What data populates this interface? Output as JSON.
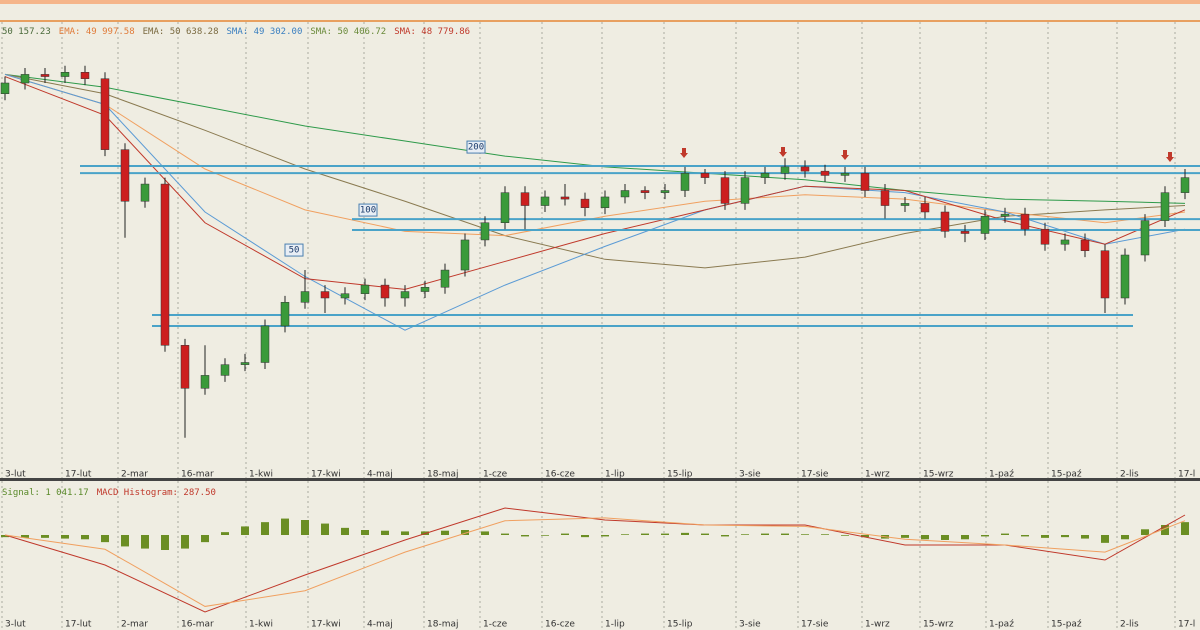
{
  "chart_data": [
    {
      "type": "candlestick",
      "header": [
        {
          "text": "50 157.23",
          "color": "#4a6a3a"
        },
        {
          "text": "EMA: 49 997.58",
          "color": "#e07b39"
        },
        {
          "text": "EMA: 50 638.28",
          "color": "#7a6a40"
        },
        {
          "text": "SMA: 49 302.00",
          "color": "#3a7fc0"
        },
        {
          "text": "SMA: 50 406.72",
          "color": "#6a8a3a"
        },
        {
          "text": "SMA: 48 779.86",
          "color": "#c0392b"
        }
      ],
      "xlim": [
        -0.25,
        59.75
      ],
      "ylim": [
        33000,
        53000
      ],
      "xticks": [
        {
          "value": -0.15,
          "label": "3-lut"
        },
        {
          "value": 2.85,
          "label": "17-lut"
        },
        {
          "value": 5.65,
          "label": "2-mar"
        },
        {
          "value": 8.65,
          "label": "16-mar"
        },
        {
          "value": 12.05,
          "label": "1-kwi"
        },
        {
          "value": 15.15,
          "label": "17-kwi"
        },
        {
          "value": 17.95,
          "label": "4-maj"
        },
        {
          "value": 20.95,
          "label": "18-maj"
        },
        {
          "value": 23.75,
          "label": "1-cze"
        },
        {
          "value": 26.85,
          "label": "16-cze"
        },
        {
          "value": 29.85,
          "label": "1-lip"
        },
        {
          "value": 32.95,
          "label": "15-lip"
        },
        {
          "value": 36.55,
          "label": "3-sie"
        },
        {
          "value": 39.65,
          "label": "17-sie"
        },
        {
          "value": 42.85,
          "label": "1-wrz"
        },
        {
          "value": 45.75,
          "label": "15-wrz"
        },
        {
          "value": 49.05,
          "label": "1-paź"
        },
        {
          "value": 52.15,
          "label": "15-paź"
        },
        {
          "value": 55.6,
          "label": "2-lis"
        },
        {
          "value": 58.5,
          "label": "17-l"
        }
      ],
      "colors": {
        "up": "#3a9a3a",
        "down": "#cc1f1f"
      },
      "open": [
        50500,
        51000,
        51400,
        51300,
        51500,
        51200,
        47900,
        45500,
        46300,
        38800,
        36800,
        37400,
        37900,
        38000,
        39700,
        40800,
        41300,
        41000,
        41200,
        41600,
        41000,
        41300,
        41500,
        42300,
        43700,
        44500,
        45900,
        45300,
        45700,
        45600,
        45200,
        45700,
        46000,
        45900,
        46000,
        46800,
        46600,
        45400,
        46600,
        46800,
        47100,
        46900,
        46700,
        46800,
        46000,
        45300,
        45400,
        45000,
        44100,
        44000,
        44800,
        44900,
        44200,
        43500,
        43700,
        43200,
        41000,
        43000,
        44600,
        45900
      ],
      "high": [
        51300,
        51700,
        51700,
        51800,
        51800,
        51500,
        48200,
        46600,
        46600,
        39100,
        38800,
        38200,
        38400,
        40000,
        41100,
        42300,
        41600,
        41500,
        41900,
        41900,
        41600,
        41800,
        42600,
        44000,
        44800,
        46200,
        46200,
        46000,
        46300,
        45900,
        46000,
        46300,
        46200,
        46300,
        47100,
        47000,
        46900,
        46900,
        47100,
        47500,
        47400,
        47200,
        47100,
        47100,
        46300,
        45700,
        45700,
        45300,
        44400,
        45100,
        45200,
        45200,
        44500,
        44000,
        44000,
        43500,
        43300,
        44900,
        46200,
        47000
      ],
      "low": [
        50200,
        50700,
        51000,
        51000,
        50900,
        47600,
        43800,
        45200,
        38500,
        34500,
        36500,
        37100,
        37600,
        37700,
        39400,
        40500,
        40300,
        40700,
        40900,
        40600,
        40600,
        41000,
        41200,
        42000,
        43400,
        44200,
        44200,
        45000,
        45300,
        44800,
        44900,
        45400,
        45600,
        45600,
        45700,
        46300,
        45100,
        45100,
        46300,
        46500,
        46600,
        46400,
        46400,
        45700,
        44700,
        45000,
        44700,
        43800,
        43600,
        43700,
        44500,
        43900,
        43200,
        43200,
        42900,
        40300,
        40700,
        42700,
        44300,
        45600
      ],
      "close": [
        51000,
        51400,
        51300,
        51500,
        51200,
        47900,
        45500,
        46300,
        38800,
        36800,
        37400,
        37900,
        38000,
        39700,
        40800,
        41300,
        41000,
        41200,
        41600,
        41000,
        41300,
        41500,
        42300,
        43700,
        44500,
        45900,
        45300,
        45700,
        45600,
        45200,
        45700,
        46000,
        45900,
        46000,
        46800,
        46600,
        45400,
        46600,
        46800,
        47100,
        46900,
        46700,
        46800,
        46000,
        45300,
        45400,
        45000,
        44100,
        44000,
        44800,
        44900,
        44200,
        43500,
        43700,
        43200,
        41000,
        43000,
        44600,
        45900,
        46600
      ],
      "series": [
        {
          "color": "#2e9a4a",
          "x": [
            0,
            5,
            10,
            15,
            20,
            25,
            30,
            35,
            40,
            45,
            50,
            55,
            59
          ],
          "values": [
            51400,
            50800,
            49900,
            49000,
            48300,
            47600,
            47100,
            46800,
            46500,
            46000,
            45600,
            45500,
            45400
          ]
        },
        {
          "color": "#8a7a50",
          "x": [
            0,
            5,
            10,
            15,
            20,
            25,
            30,
            35,
            40,
            45,
            50,
            55,
            59
          ],
          "values": [
            51400,
            50500,
            48800,
            47000,
            45500,
            43900,
            42800,
            42400,
            42900,
            44000,
            44800,
            45100,
            45300
          ]
        },
        {
          "color": "#f0a060",
          "x": [
            0,
            5,
            10,
            15,
            20,
            25,
            30,
            35,
            40,
            45,
            50,
            55,
            59
          ],
          "values": [
            51400,
            50000,
            47000,
            45100,
            44100,
            43900,
            44800,
            45500,
            45800,
            45600,
            45000,
            44500,
            45000
          ]
        },
        {
          "color": "#5b9bd5",
          "x": [
            0,
            5,
            10,
            15,
            20,
            25,
            30,
            35,
            40,
            45,
            50,
            55,
            59
          ],
          "values": [
            51400,
            50000,
            45000,
            42000,
            39500,
            41600,
            43400,
            45100,
            46200,
            45900,
            45000,
            43500,
            44200
          ]
        },
        {
          "color": "#c0392b",
          "x": [
            0,
            5,
            10,
            15,
            20,
            25,
            30,
            35,
            40,
            45,
            50,
            55,
            59
          ],
          "values": [
            51300,
            49500,
            44500,
            41900,
            41400,
            42700,
            44000,
            45100,
            46200,
            46000,
            44600,
            43500,
            45100
          ]
        }
      ],
      "levels": [
        {
          "value": 47140,
          "xlim": [
            3.75,
            59.75
          ]
        },
        {
          "value": 46810,
          "xlim": [
            3.75,
            59.75
          ]
        },
        {
          "value": 44670,
          "xlim": [
            17.35,
            59.75
          ]
        },
        {
          "value": 44160,
          "xlim": [
            17.35,
            59.75
          ]
        },
        {
          "value": 40210,
          "xlim": [
            7.35,
            56.4
          ]
        },
        {
          "value": 39700,
          "xlim": [
            7.35,
            56.4
          ]
        }
      ],
      "annotations": [
        {
          "text": "200",
          "x": 23.55,
          "y": 48020
        },
        {
          "text": "100",
          "x": 18.15,
          "y": 45090
        },
        {
          "text": "50",
          "x": 14.45,
          "y": 43230
        }
      ]
    },
    {
      "type": "macd",
      "header": [
        {
          "text": "Signal: 1 041.17",
          "color": "#5a8a2a"
        },
        {
          "text": "MACD Histogram: 287.50",
          "color": "#c0392b"
        }
      ],
      "xlim": [
        -0.25,
        59.75
      ],
      "ylim": [
        -6650,
        3360
      ],
      "xticks": [
        {
          "value": -0.15,
          "label": "3-lut"
        },
        {
          "value": 2.85,
          "label": "17-lut"
        },
        {
          "value": 5.65,
          "label": "2-mar"
        },
        {
          "value": 8.65,
          "label": "16-mar"
        },
        {
          "value": 12.05,
          "label": "1-kwi"
        },
        {
          "value": 15.15,
          "label": "17-kwi"
        },
        {
          "value": 17.95,
          "label": "4-maj"
        },
        {
          "value": 20.95,
          "label": "18-maj"
        },
        {
          "value": 23.75,
          "label": "1-cze"
        },
        {
          "value": 26.85,
          "label": "16-cze"
        },
        {
          "value": 29.85,
          "label": "1-lip"
        },
        {
          "value": 32.95,
          "label": "15-lip"
        },
        {
          "value": 36.55,
          "label": "3-sie"
        },
        {
          "value": 39.65,
          "label": "17-sie"
        },
        {
          "value": 42.85,
          "label": "1-wrz"
        },
        {
          "value": 45.75,
          "label": "15-wrz"
        },
        {
          "value": 49.05,
          "label": "1-paź"
        },
        {
          "value": 52.15,
          "label": "15-paź"
        },
        {
          "value": 55.6,
          "label": "2-lis"
        },
        {
          "value": 58.5,
          "label": "17-l"
        }
      ],
      "histogram": {
        "color": "#6b8e23",
        "values": [
          -150,
          -200,
          -200,
          -250,
          -300,
          -500,
          -800,
          -950,
          -1050,
          -950,
          -500,
          200,
          600,
          900,
          1150,
          1050,
          800,
          500,
          350,
          300,
          250,
          250,
          300,
          350,
          250,
          100,
          -100,
          -50,
          100,
          -150,
          -100,
          50,
          100,
          100,
          150,
          100,
          -100,
          50,
          100,
          100,
          50,
          50,
          -50,
          -150,
          -250,
          -200,
          -300,
          -350,
          -300,
          -100,
          100,
          -100,
          -200,
          -150,
          -250,
          -550,
          -300,
          400,
          700,
          900
        ]
      },
      "series": [
        {
          "color": "#c0392b",
          "x": [
            0,
            5,
            10,
            15,
            20,
            25,
            30,
            35,
            40,
            45,
            50,
            55,
            59
          ],
          "values": [
            0,
            -2100,
            -5390,
            -2800,
            -350,
            1890,
            1050,
            700,
            700,
            -700,
            -700,
            -1750,
            1400
          ]
        },
        {
          "color": "#f0a060",
          "x": [
            0,
            5,
            10,
            15,
            20,
            25,
            30,
            35,
            40,
            45,
            50,
            55,
            59
          ],
          "values": [
            0,
            -1000,
            -5000,
            -3900,
            -1200,
            1000,
            1200,
            700,
            600,
            -300,
            -700,
            -1200,
            1000
          ]
        }
      ]
    }
  ]
}
